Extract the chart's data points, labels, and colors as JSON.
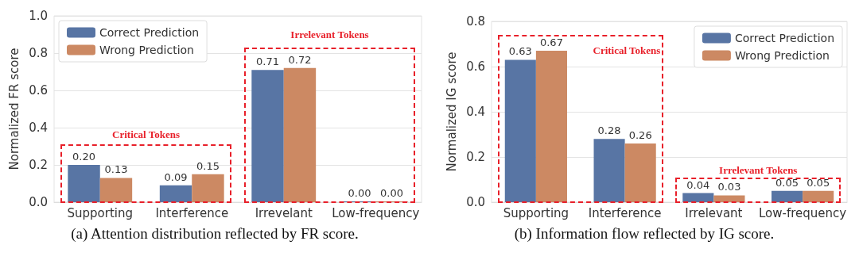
{
  "chart_data": [
    {
      "type": "bar",
      "ylabel": "Normalized FR score",
      "categories": [
        "Supporting",
        "Interference",
        "Irrevelant",
        "Low-frequency"
      ],
      "series": [
        {
          "name": "Correct Prediction",
          "color": "#5875a4",
          "values": [
            0.2,
            0.09,
            0.71,
            0.0
          ],
          "value_labels": [
            "0.20",
            "0.09",
            "0.71",
            "0.00"
          ]
        },
        {
          "name": "Wrong Prediction",
          "color": "#cc8963",
          "values": [
            0.13,
            0.15,
            0.72,
            0.0
          ],
          "value_labels": [
            "0.13",
            "0.15",
            "0.72",
            "0.00"
          ]
        }
      ],
      "ylim": [
        0,
        1.0
      ],
      "yticks": [
        {
          "value": 0,
          "label": "0.0"
        },
        {
          "value": 0.2,
          "label": "0.2"
        },
        {
          "value": 0.4,
          "label": "0.4"
        },
        {
          "value": 0.6,
          "label": "0.6"
        },
        {
          "value": 0.8,
          "label": "0.8"
        },
        {
          "value": 1.0,
          "label": "1.0"
        }
      ],
      "grid": "y",
      "legend": "top left",
      "annotations": [
        "(a) Attention distribution reflected by FR score.",
        "Critical Tokens",
        "Irrelevant Tokens"
      ]
    },
    {
      "type": "bar",
      "ylabel": "Normalized IG score",
      "categories": [
        "Supporting",
        "Interference",
        "Irrelevant",
        "Low-frequency"
      ],
      "series": [
        {
          "name": "Correct Prediction",
          "color": "#5875a4",
          "values": [
            0.63,
            0.28,
            0.04,
            0.05
          ],
          "value_labels": [
            "0.63",
            "0.28",
            "0.04",
            "0.05"
          ]
        },
        {
          "name": "Wrong Prediction",
          "color": "#cc8963",
          "values": [
            0.67,
            0.26,
            0.03,
            0.05
          ],
          "value_labels": [
            "0.67",
            "0.26",
            "0.03",
            "0.05"
          ]
        }
      ],
      "ylim": [
        0,
        0.8
      ],
      "yticks": [
        {
          "value": 0,
          "label": "0.0"
        },
        {
          "value": 0.2,
          "label": "0.2"
        },
        {
          "value": 0.4,
          "label": "0.4"
        },
        {
          "value": 0.6,
          "label": "0.6"
        },
        {
          "value": 0.8,
          "label": "0.8"
        }
      ],
      "grid": "y",
      "legend": "top right",
      "annotations": [
        "(b) Information flow reflected by IG score.",
        "Critical Tokens",
        "Irrelevant Tokens"
      ]
    }
  ]
}
